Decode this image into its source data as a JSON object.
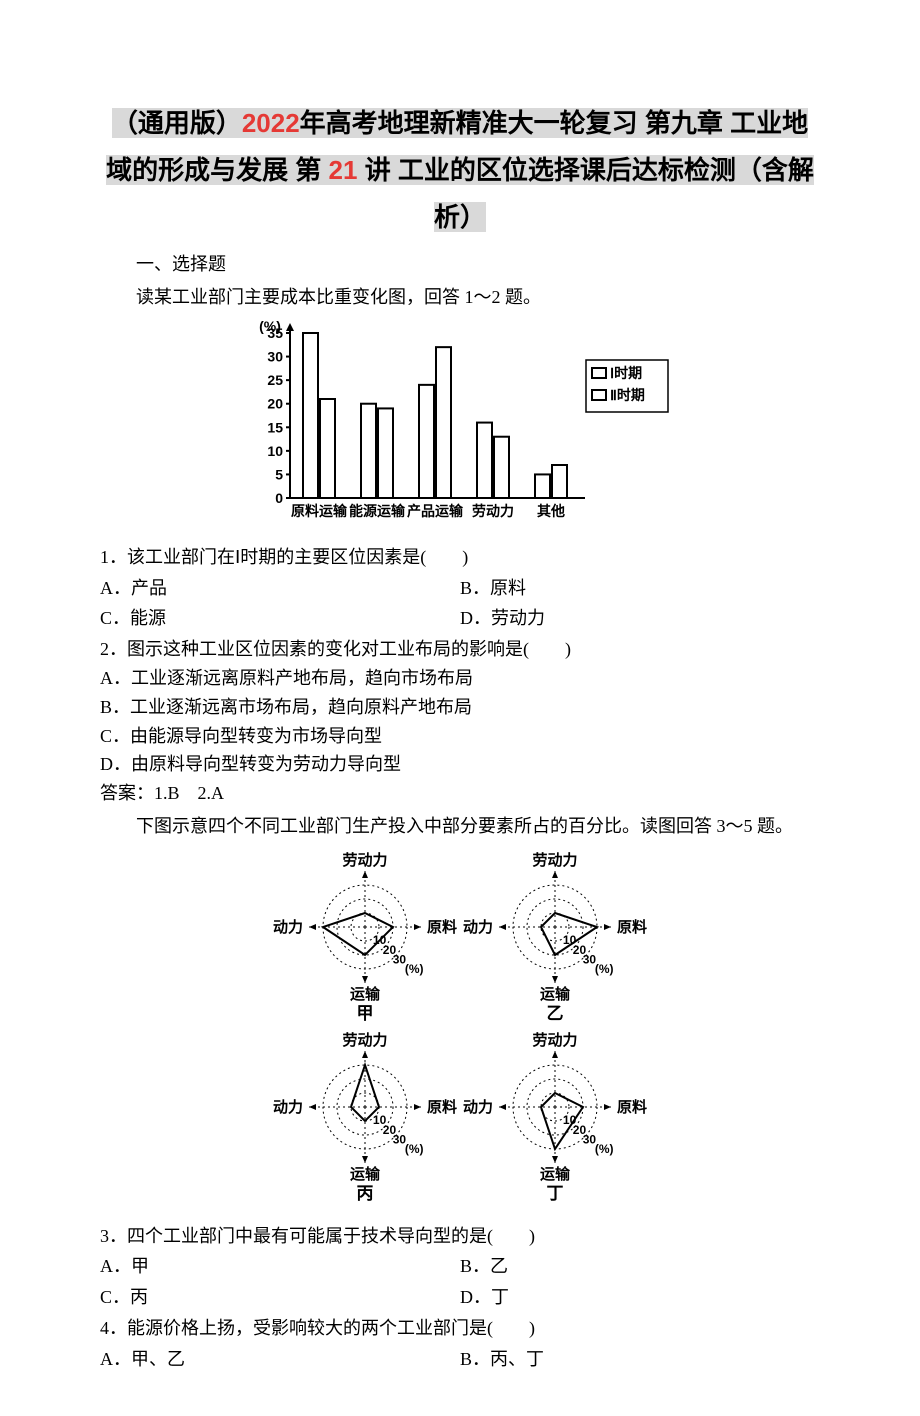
{
  "title": {
    "pre": "（通用版）",
    "year": "2022",
    "mid1": "年高考地理新精准大一轮复习",
    "mid2": "第九章",
    "mid3": "工业地域的形成与发展  第",
    "num": "21",
    "tail": "讲  工业的区位选择课后达标检测（含解析）"
  },
  "section1": "一、选择题",
  "intro1": "读某工业部门主要成本比重变化图，回答 1～2 题。",
  "bar_chart": {
    "ylabel": "(%)",
    "ymax": 35,
    "ytick_step": 5,
    "categories": [
      "原料运输",
      "能源运输",
      "产品运输",
      "劳动力",
      "其他"
    ],
    "series1_name": "Ⅰ时期",
    "series2_name": "Ⅱ时期",
    "series1": [
      35,
      20,
      24,
      16,
      5
    ],
    "series2": [
      21,
      19,
      32,
      13,
      7
    ],
    "bar_border": "#000000",
    "bg": "#ffffff"
  },
  "q1": {
    "stem": "1．该工业部门在Ⅰ时期的主要区位因素是(　　)",
    "A": "A．产品",
    "B": "B．原料",
    "C": "C．能源",
    "D": "D．劳动力"
  },
  "q2": {
    "stem": "2．图示这种工业区位因素的变化对工业布局的影响是(　　)",
    "A": "A．工业逐渐远离原料产地布局，趋向市场布局",
    "B": "B．工业逐渐远离市场布局，趋向原料产地布局",
    "C": "C．由能源导向型转变为市场导向型",
    "D": "D．由原料导向型转变为劳动力导向型"
  },
  "ans12": "答案：1.B　2.A",
  "intro2": "下图示意四个不同工业部门生产投入中部分要素所占的百分比。读图回答 3～5 题。",
  "radar": {
    "axes": [
      "劳动力",
      "原料",
      "运输",
      "动力"
    ],
    "ticks": [
      10,
      20,
      30
    ],
    "tick_unit": "(%)",
    "names": [
      "甲",
      "乙",
      "丙",
      "丁"
    ],
    "data": {
      "甲": [
        10,
        20,
        20,
        30
      ],
      "乙": [
        10,
        30,
        20,
        10
      ],
      "丙": [
        30,
        10,
        10,
        10
      ],
      "丁": [
        10,
        20,
        30,
        10
      ]
    }
  },
  "q3": {
    "stem": "3．四个工业部门中最有可能属于技术导向型的是(　　)",
    "A": "A．甲",
    "B": "B．乙",
    "C": "C．丙",
    "D": "D．丁"
  },
  "q4": {
    "stem": "4．能源价格上扬，受影响较大的两个工业部门是(　　)",
    "A": "A．甲、乙",
    "B": "B．丙、丁"
  }
}
